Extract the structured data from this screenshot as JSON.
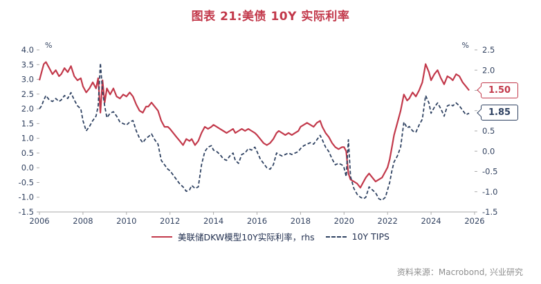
{
  "title": "图表 21:美债 10Y 实际利率",
  "source": "资料来源：Macrobond, 兴业研究",
  "colors": {
    "title": "#c2384a",
    "dkw_line": "#c2384a",
    "tips_line": "#2e4161",
    "axis_text": "#31415f",
    "legend_text": "#223050",
    "source_text": "#8e8e8e",
    "axis_line": "#aaaaaa"
  },
  "callouts": [
    {
      "label": "1.50",
      "value": 1.5,
      "axis": "right",
      "color": "#c2384a"
    },
    {
      "label": "1.85",
      "value": 1.85,
      "axis": "left",
      "color": "#2e4161"
    }
  ],
  "chart_data": {
    "type": "line",
    "x_range": [
      2006,
      2026
    ],
    "x_ticks": [
      2006,
      2008,
      2010,
      2012,
      2014,
      2016,
      2018,
      2020,
      2022,
      2024,
      2026
    ],
    "left_axis": {
      "unit": "%",
      "min": -1.5,
      "max": 4.0,
      "ticks": [
        4.0,
        3.5,
        3.0,
        2.5,
        2.0,
        1.5,
        1.0,
        0.5,
        0.0,
        -0.5,
        -1.0,
        -1.5
      ]
    },
    "right_axis": {
      "unit": "%",
      "min": -1.5,
      "max": 2.5,
      "ticks": [
        2.5,
        2.0,
        1.5,
        1.0,
        0.5,
        0.0,
        -0.5,
        -1.0,
        -1.5
      ]
    },
    "legend_position": "bottom",
    "grid": false,
    "series": [
      {
        "name": "美联储DKW模型10Y实际利率，rhs",
        "axis": "right",
        "style": "solid",
        "color": "#c2384a",
        "last_value": 1.5,
        "points": [
          [
            2006.0,
            1.75
          ],
          [
            2006.1,
            1.95
          ],
          [
            2006.2,
            2.15
          ],
          [
            2006.3,
            2.2
          ],
          [
            2006.45,
            2.05
          ],
          [
            2006.6,
            1.9
          ],
          [
            2006.75,
            2.0
          ],
          [
            2006.9,
            1.85
          ],
          [
            2007.0,
            1.9
          ],
          [
            2007.15,
            2.05
          ],
          [
            2007.3,
            1.95
          ],
          [
            2007.45,
            2.1
          ],
          [
            2007.6,
            1.85
          ],
          [
            2007.75,
            1.75
          ],
          [
            2007.9,
            1.8
          ],
          [
            2008.0,
            1.6
          ],
          [
            2008.15,
            1.45
          ],
          [
            2008.3,
            1.55
          ],
          [
            2008.45,
            1.7
          ],
          [
            2008.6,
            1.55
          ],
          [
            2008.7,
            1.8
          ],
          [
            2008.8,
            0.95
          ],
          [
            2008.9,
            1.75
          ],
          [
            2009.0,
            1.2
          ],
          [
            2009.1,
            1.55
          ],
          [
            2009.25,
            1.4
          ],
          [
            2009.4,
            1.55
          ],
          [
            2009.55,
            1.35
          ],
          [
            2009.7,
            1.3
          ],
          [
            2009.85,
            1.4
          ],
          [
            2010.0,
            1.35
          ],
          [
            2010.15,
            1.45
          ],
          [
            2010.3,
            1.35
          ],
          [
            2010.45,
            1.15
          ],
          [
            2010.6,
            1.0
          ],
          [
            2010.75,
            0.95
          ],
          [
            2010.9,
            1.1
          ],
          [
            2011.0,
            1.1
          ],
          [
            2011.15,
            1.2
          ],
          [
            2011.3,
            1.1
          ],
          [
            2011.45,
            1.0
          ],
          [
            2011.6,
            0.75
          ],
          [
            2011.75,
            0.6
          ],
          [
            2011.9,
            0.6
          ],
          [
            2012.0,
            0.55
          ],
          [
            2012.15,
            0.45
          ],
          [
            2012.3,
            0.35
          ],
          [
            2012.45,
            0.25
          ],
          [
            2012.6,
            0.15
          ],
          [
            2012.75,
            0.3
          ],
          [
            2012.9,
            0.25
          ],
          [
            2013.0,
            0.3
          ],
          [
            2013.15,
            0.15
          ],
          [
            2013.3,
            0.25
          ],
          [
            2013.45,
            0.45
          ],
          [
            2013.6,
            0.6
          ],
          [
            2013.75,
            0.55
          ],
          [
            2013.9,
            0.6
          ],
          [
            2014.0,
            0.65
          ],
          [
            2014.15,
            0.6
          ],
          [
            2014.3,
            0.55
          ],
          [
            2014.45,
            0.5
          ],
          [
            2014.6,
            0.45
          ],
          [
            2014.75,
            0.5
          ],
          [
            2014.9,
            0.55
          ],
          [
            2015.0,
            0.45
          ],
          [
            2015.15,
            0.5
          ],
          [
            2015.3,
            0.55
          ],
          [
            2015.45,
            0.5
          ],
          [
            2015.6,
            0.55
          ],
          [
            2015.75,
            0.5
          ],
          [
            2015.9,
            0.45
          ],
          [
            2016.0,
            0.4
          ],
          [
            2016.15,
            0.3
          ],
          [
            2016.3,
            0.2
          ],
          [
            2016.45,
            0.15
          ],
          [
            2016.6,
            0.2
          ],
          [
            2016.75,
            0.3
          ],
          [
            2016.9,
            0.45
          ],
          [
            2017.0,
            0.5
          ],
          [
            2017.15,
            0.45
          ],
          [
            2017.3,
            0.4
          ],
          [
            2017.45,
            0.45
          ],
          [
            2017.6,
            0.4
          ],
          [
            2017.75,
            0.45
          ],
          [
            2017.9,
            0.5
          ],
          [
            2018.0,
            0.6
          ],
          [
            2018.15,
            0.65
          ],
          [
            2018.3,
            0.7
          ],
          [
            2018.45,
            0.65
          ],
          [
            2018.6,
            0.6
          ],
          [
            2018.75,
            0.7
          ],
          [
            2018.9,
            0.75
          ],
          [
            2019.0,
            0.6
          ],
          [
            2019.15,
            0.45
          ],
          [
            2019.3,
            0.35
          ],
          [
            2019.45,
            0.2
          ],
          [
            2019.6,
            0.1
          ],
          [
            2019.75,
            0.05
          ],
          [
            2019.9,
            0.1
          ],
          [
            2020.0,
            0.1
          ],
          [
            2020.1,
            0.0
          ],
          [
            2020.2,
            -0.55
          ],
          [
            2020.3,
            -0.7
          ],
          [
            2020.45,
            -0.75
          ],
          [
            2020.6,
            -0.8
          ],
          [
            2020.75,
            -0.9
          ],
          [
            2020.9,
            -0.75
          ],
          [
            2021.0,
            -0.65
          ],
          [
            2021.15,
            -0.55
          ],
          [
            2021.3,
            -0.65
          ],
          [
            2021.45,
            -0.75
          ],
          [
            2021.6,
            -0.7
          ],
          [
            2021.75,
            -0.65
          ],
          [
            2021.9,
            -0.5
          ],
          [
            2022.0,
            -0.4
          ],
          [
            2022.1,
            -0.2
          ],
          [
            2022.2,
            0.1
          ],
          [
            2022.3,
            0.4
          ],
          [
            2022.45,
            0.7
          ],
          [
            2022.6,
            1.0
          ],
          [
            2022.75,
            1.4
          ],
          [
            2022.9,
            1.25
          ],
          [
            2023.0,
            1.3
          ],
          [
            2023.15,
            1.45
          ],
          [
            2023.3,
            1.35
          ],
          [
            2023.45,
            1.5
          ],
          [
            2023.6,
            1.7
          ],
          [
            2023.75,
            2.15
          ],
          [
            2023.9,
            1.95
          ],
          [
            2024.0,
            1.75
          ],
          [
            2024.15,
            1.9
          ],
          [
            2024.3,
            2.0
          ],
          [
            2024.45,
            1.8
          ],
          [
            2024.6,
            1.65
          ],
          [
            2024.75,
            1.85
          ],
          [
            2024.9,
            1.8
          ],
          [
            2025.0,
            1.75
          ],
          [
            2025.15,
            1.9
          ],
          [
            2025.3,
            1.85
          ],
          [
            2025.45,
            1.7
          ],
          [
            2025.6,
            1.6
          ],
          [
            2025.75,
            1.5
          ]
        ]
      },
      {
        "name": "10Y TIPS",
        "axis": "left",
        "style": "dashed",
        "color": "#2e4161",
        "last_value": 1.85,
        "points": [
          [
            2006.0,
            2.0
          ],
          [
            2006.1,
            2.1
          ],
          [
            2006.2,
            2.3
          ],
          [
            2006.3,
            2.45
          ],
          [
            2006.45,
            2.3
          ],
          [
            2006.6,
            2.25
          ],
          [
            2006.75,
            2.35
          ],
          [
            2006.9,
            2.25
          ],
          [
            2007.0,
            2.3
          ],
          [
            2007.15,
            2.45
          ],
          [
            2007.3,
            2.35
          ],
          [
            2007.45,
            2.55
          ],
          [
            2007.6,
            2.3
          ],
          [
            2007.75,
            2.1
          ],
          [
            2007.9,
            2.0
          ],
          [
            2008.0,
            1.6
          ],
          [
            2008.15,
            1.25
          ],
          [
            2008.3,
            1.4
          ],
          [
            2008.45,
            1.6
          ],
          [
            2008.6,
            1.75
          ],
          [
            2008.7,
            2.1
          ],
          [
            2008.8,
            3.55
          ],
          [
            2008.9,
            2.6
          ],
          [
            2009.0,
            2.1
          ],
          [
            2009.1,
            1.7
          ],
          [
            2009.25,
            1.85
          ],
          [
            2009.4,
            1.9
          ],
          [
            2009.55,
            1.75
          ],
          [
            2009.7,
            1.55
          ],
          [
            2009.85,
            1.5
          ],
          [
            2010.0,
            1.45
          ],
          [
            2010.15,
            1.55
          ],
          [
            2010.3,
            1.6
          ],
          [
            2010.45,
            1.25
          ],
          [
            2010.6,
            1.0
          ],
          [
            2010.75,
            0.85
          ],
          [
            2010.9,
            1.0
          ],
          [
            2011.0,
            1.05
          ],
          [
            2011.15,
            1.15
          ],
          [
            2011.3,
            0.95
          ],
          [
            2011.45,
            0.8
          ],
          [
            2011.6,
            0.25
          ],
          [
            2011.75,
            0.1
          ],
          [
            2011.9,
            -0.05
          ],
          [
            2012.0,
            -0.1
          ],
          [
            2012.15,
            -0.25
          ],
          [
            2012.3,
            -0.4
          ],
          [
            2012.45,
            -0.55
          ],
          [
            2012.6,
            -0.65
          ],
          [
            2012.75,
            -0.8
          ],
          [
            2012.9,
            -0.75
          ],
          [
            2013.0,
            -0.6
          ],
          [
            2013.15,
            -0.7
          ],
          [
            2013.3,
            -0.65
          ],
          [
            2013.45,
            0.1
          ],
          [
            2013.6,
            0.55
          ],
          [
            2013.75,
            0.7
          ],
          [
            2013.9,
            0.75
          ],
          [
            2014.0,
            0.6
          ],
          [
            2014.15,
            0.55
          ],
          [
            2014.3,
            0.45
          ],
          [
            2014.45,
            0.3
          ],
          [
            2014.6,
            0.25
          ],
          [
            2014.75,
            0.4
          ],
          [
            2014.9,
            0.5
          ],
          [
            2015.0,
            0.25
          ],
          [
            2015.15,
            0.15
          ],
          [
            2015.3,
            0.45
          ],
          [
            2015.45,
            0.5
          ],
          [
            2015.6,
            0.65
          ],
          [
            2015.75,
            0.6
          ],
          [
            2015.9,
            0.7
          ],
          [
            2016.0,
            0.55
          ],
          [
            2016.15,
            0.3
          ],
          [
            2016.3,
            0.15
          ],
          [
            2016.45,
            0.0
          ],
          [
            2016.6,
            -0.05
          ],
          [
            2016.75,
            0.1
          ],
          [
            2016.9,
            0.5
          ],
          [
            2017.0,
            0.45
          ],
          [
            2017.15,
            0.4
          ],
          [
            2017.3,
            0.45
          ],
          [
            2017.45,
            0.5
          ],
          [
            2017.6,
            0.45
          ],
          [
            2017.75,
            0.5
          ],
          [
            2017.9,
            0.55
          ],
          [
            2018.0,
            0.65
          ],
          [
            2018.15,
            0.75
          ],
          [
            2018.3,
            0.8
          ],
          [
            2018.45,
            0.85
          ],
          [
            2018.6,
            0.8
          ],
          [
            2018.75,
            0.95
          ],
          [
            2018.9,
            1.1
          ],
          [
            2019.0,
            0.95
          ],
          [
            2019.15,
            0.7
          ],
          [
            2019.3,
            0.55
          ],
          [
            2019.45,
            0.3
          ],
          [
            2019.6,
            0.1
          ],
          [
            2019.75,
            0.15
          ],
          [
            2019.9,
            0.1
          ],
          [
            2020.0,
            0.0
          ],
          [
            2020.1,
            -0.3
          ],
          [
            2020.2,
            0.95
          ],
          [
            2020.3,
            -0.3
          ],
          [
            2020.45,
            -0.7
          ],
          [
            2020.6,
            -0.9
          ],
          [
            2020.75,
            -1.0
          ],
          [
            2020.9,
            -1.05
          ],
          [
            2021.0,
            -1.0
          ],
          [
            2021.15,
            -0.65
          ],
          [
            2021.3,
            -0.75
          ],
          [
            2021.45,
            -0.85
          ],
          [
            2021.6,
            -1.05
          ],
          [
            2021.75,
            -1.1
          ],
          [
            2021.9,
            -1.0
          ],
          [
            2022.0,
            -0.75
          ],
          [
            2022.1,
            -0.5
          ],
          [
            2022.2,
            -0.1
          ],
          [
            2022.3,
            0.2
          ],
          [
            2022.45,
            0.4
          ],
          [
            2022.6,
            0.7
          ],
          [
            2022.75,
            1.55
          ],
          [
            2022.9,
            1.35
          ],
          [
            2023.0,
            1.4
          ],
          [
            2023.15,
            1.25
          ],
          [
            2023.3,
            1.2
          ],
          [
            2023.45,
            1.45
          ],
          [
            2023.6,
            1.65
          ],
          [
            2023.75,
            2.45
          ],
          [
            2023.9,
            2.2
          ],
          [
            2024.0,
            1.85
          ],
          [
            2024.15,
            2.05
          ],
          [
            2024.3,
            2.2
          ],
          [
            2024.45,
            2.0
          ],
          [
            2024.6,
            1.75
          ],
          [
            2024.75,
            2.1
          ],
          [
            2024.9,
            2.15
          ],
          [
            2025.0,
            2.1
          ],
          [
            2025.15,
            2.2
          ],
          [
            2025.3,
            2.1
          ],
          [
            2025.45,
            1.95
          ],
          [
            2025.6,
            1.8
          ],
          [
            2025.75,
            1.85
          ]
        ]
      }
    ]
  }
}
